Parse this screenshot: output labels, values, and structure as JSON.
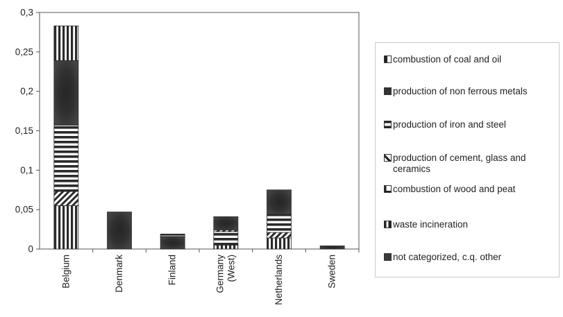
{
  "chart_data": {
    "type": "bar",
    "stacked": true,
    "categories": [
      "Belgium",
      "Denmark",
      "Finland",
      "Germany (West)",
      "Netherlands",
      "Sweden"
    ],
    "ylim": [
      0,
      0.3
    ],
    "yticks": [
      "0",
      "0,05",
      "0,1",
      "0,15",
      "0,2",
      "0,25",
      "0,3"
    ],
    "ytick_values": [
      0,
      0.05,
      0.1,
      0.15,
      0.2,
      0.25,
      0.3
    ],
    "grid": false,
    "legend_position": "right",
    "series": [
      {
        "name": "combustion of coal and oil",
        "pattern": "vertical",
        "values": [
          0.055,
          0,
          0,
          0.005,
          0.014,
          0
        ]
      },
      {
        "name": "production of non ferrous metals",
        "pattern": "dark",
        "values": [
          0,
          0,
          0,
          0,
          0,
          0
        ]
      },
      {
        "name": "production of iron and steel",
        "pattern": "horizontal",
        "values": [
          0,
          0,
          0,
          0.017,
          0.023,
          0
        ]
      },
      {
        "name": "production of cement, glass and ceramics",
        "pattern": "diagonal",
        "values": [
          0.018,
          0,
          0,
          0.002,
          0.007,
          0
        ]
      },
      {
        "name": "combustion of wood and peat",
        "pattern": "corner",
        "values": [
          0,
          0,
          0,
          0,
          0,
          0
        ]
      },
      {
        "name": "waste incineration",
        "pattern": "midbar",
        "values": [
          0,
          0,
          0,
          0,
          0,
          0
        ]
      },
      {
        "name": "not categorized, c.q. other",
        "pattern": "dark",
        "values": [
          0,
          0,
          0,
          0,
          0,
          0
        ]
      }
    ],
    "segments": [
      {
        "category": "Belgium",
        "pattern": "vertical",
        "from": 0,
        "to": 0.055
      },
      {
        "category": "Belgium",
        "pattern": "diagonal",
        "from": 0.055,
        "to": 0.073
      },
      {
        "category": "Belgium",
        "pattern": "horizontal",
        "from": 0.073,
        "to": 0.157
      },
      {
        "category": "Belgium",
        "pattern": "dark",
        "from": 0.157,
        "to": 0.239
      },
      {
        "category": "Belgium",
        "pattern": "vertical",
        "from": 0.239,
        "to": 0.283
      },
      {
        "category": "Denmark",
        "pattern": "dark",
        "from": 0,
        "to": 0.047
      },
      {
        "category": "Finland",
        "pattern": "dark",
        "from": 0,
        "to": 0.016
      },
      {
        "category": "Finland",
        "pattern": "horizontal",
        "from": 0.016,
        "to": 0.019
      },
      {
        "category": "Germany (West)",
        "pattern": "vertical",
        "from": 0,
        "to": 0.005
      },
      {
        "category": "Germany (West)",
        "pattern": "horizontal",
        "from": 0.005,
        "to": 0.022
      },
      {
        "category": "Germany (West)",
        "pattern": "diagonal",
        "from": 0.022,
        "to": 0.024
      },
      {
        "category": "Germany (West)",
        "pattern": "dark",
        "from": 0.024,
        "to": 0.041
      },
      {
        "category": "Netherlands",
        "pattern": "vertical",
        "from": 0,
        "to": 0.014
      },
      {
        "category": "Netherlands",
        "pattern": "diagonal",
        "from": 0.014,
        "to": 0.021
      },
      {
        "category": "Netherlands",
        "pattern": "horizontal",
        "from": 0.021,
        "to": 0.044
      },
      {
        "category": "Netherlands",
        "pattern": "dark",
        "from": 0.044,
        "to": 0.075
      },
      {
        "category": "Sweden",
        "pattern": "dark",
        "from": 0,
        "to": 0.004
      }
    ]
  },
  "colors": {
    "dark": "#3a3a3a",
    "light": "#ffffff",
    "axis": "#555555"
  }
}
